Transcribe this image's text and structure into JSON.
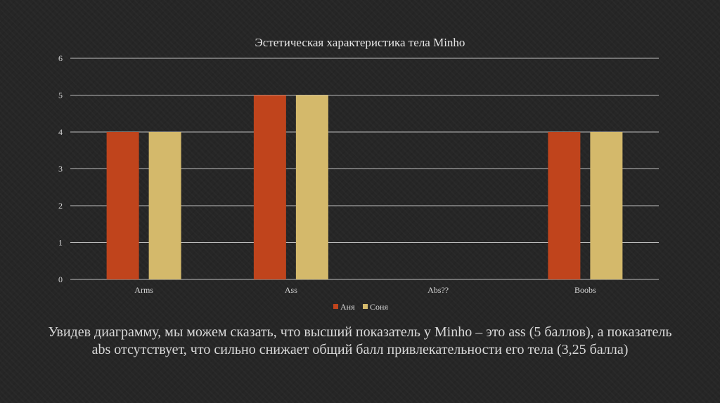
{
  "chart_data": {
    "type": "bar",
    "title": "Эстетическая характеристика тела Minho",
    "xlabel": "",
    "ylabel": "",
    "categories": [
      "Arms",
      "Ass",
      "Abs??",
      "Boobs"
    ],
    "series": [
      {
        "name": "Аня",
        "values": [
          4,
          5,
          0,
          4
        ],
        "color": "#c0441c"
      },
      {
        "name": "Соня",
        "values": [
          4,
          5,
          0,
          4
        ],
        "color": "#d4b96b"
      }
    ],
    "ylim": [
      0,
      6
    ],
    "yticks": [
      "0",
      "1",
      "2",
      "3",
      "4",
      "5",
      "6"
    ],
    "grid": true,
    "legend_position": "bottom"
  },
  "caption": "Увидев диаграмму, мы можем сказать, что высший показатель у Minho – это ass (5 баллов), а показатель abs отсутствует, что сильно снижает общий балл привлекательности его тела (3,25 балла)",
  "colors": {
    "background": "#262626",
    "gridline": "#bfbfbf",
    "text": "#d9d9d9"
  }
}
